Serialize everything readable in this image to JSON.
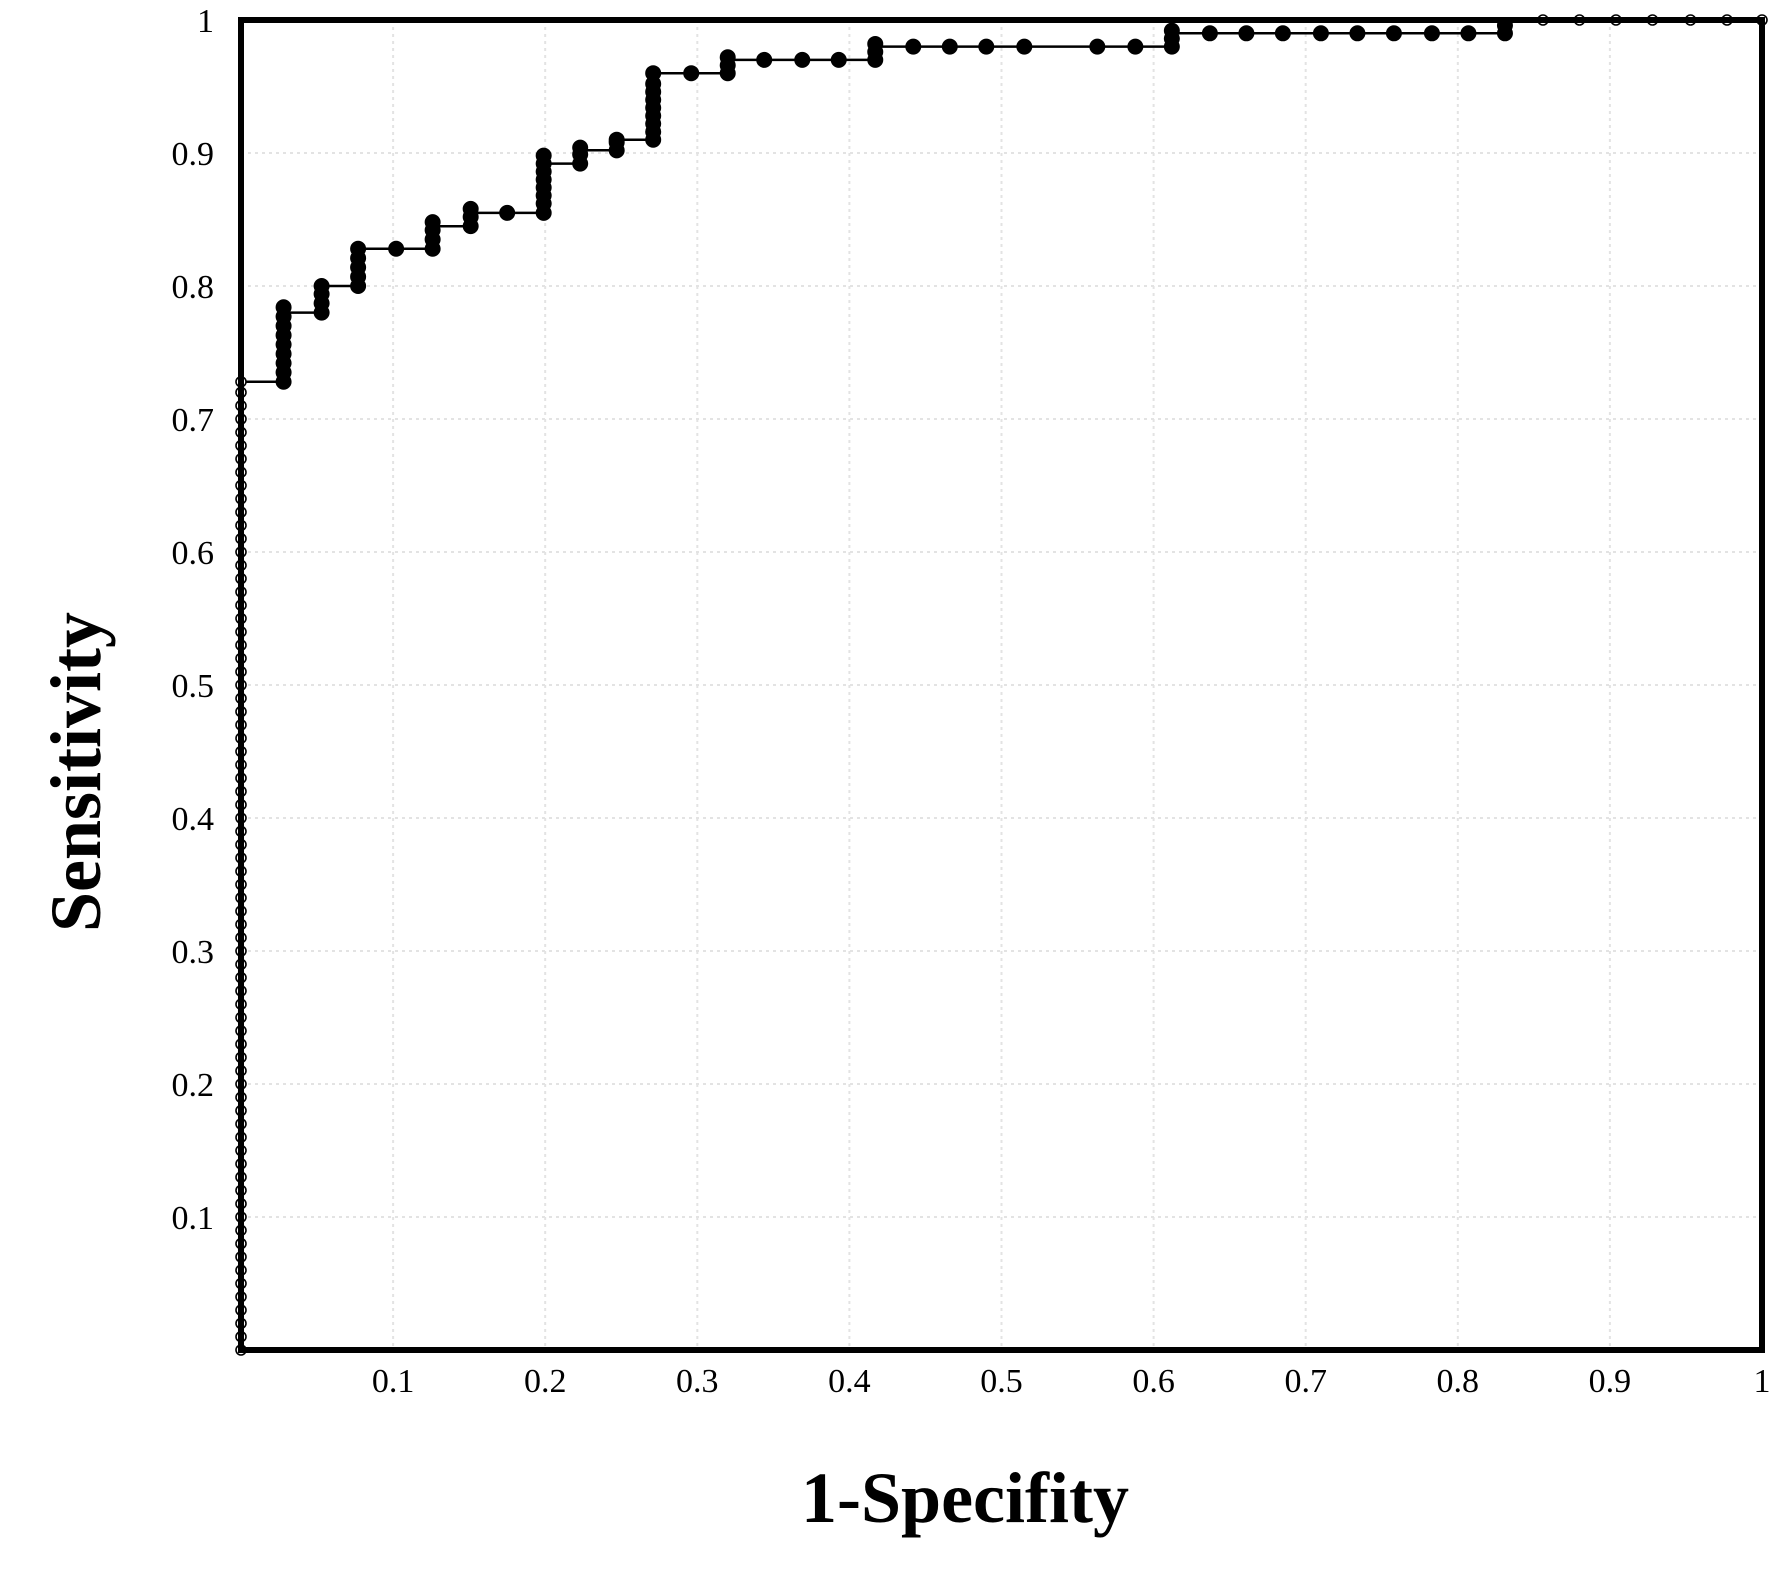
{
  "chart_data": {
    "type": "line",
    "title": "",
    "xlabel": "1-Specifity",
    "ylabel": "Sensitivity",
    "xlim": [
      0,
      1
    ],
    "ylim": [
      0,
      1
    ],
    "grid": true,
    "x_ticks": [
      {
        "value": 0.1,
        "label": "0.1"
      },
      {
        "value": 0.2,
        "label": "0.2"
      },
      {
        "value": 0.3,
        "label": "0.3"
      },
      {
        "value": 0.4,
        "label": "0.4"
      },
      {
        "value": 0.5,
        "label": "0.5"
      },
      {
        "value": 0.6,
        "label": "0.6"
      },
      {
        "value": 0.7,
        "label": "0.7"
      },
      {
        "value": 0.8,
        "label": "0.8"
      },
      {
        "value": 0.9,
        "label": "0.9"
      },
      {
        "value": 1.0,
        "label": "1"
      }
    ],
    "y_ticks": [
      {
        "value": 0.1,
        "label": "0.1"
      },
      {
        "value": 0.2,
        "label": "0.2"
      },
      {
        "value": 0.3,
        "label": "0.3"
      },
      {
        "value": 0.4,
        "label": "0.4"
      },
      {
        "value": 0.5,
        "label": "0.5"
      },
      {
        "value": 0.6,
        "label": "0.6"
      },
      {
        "value": 0.7,
        "label": "0.7"
      },
      {
        "value": 0.8,
        "label": "0.8"
      },
      {
        "value": 0.9,
        "label": "0.9"
      },
      {
        "value": 1.0,
        "label": "1"
      }
    ],
    "series": [
      {
        "style": "open-markers",
        "x": [
          0,
          0,
          0,
          0,
          0,
          0,
          0,
          0,
          0,
          0,
          0,
          0,
          0,
          0,
          0,
          0,
          0,
          0,
          0,
          0,
          0,
          0,
          0,
          0,
          0,
          0,
          0,
          0,
          0,
          0,
          0,
          0,
          0,
          0,
          0,
          0,
          0,
          0,
          0,
          0,
          0,
          0,
          0,
          0,
          0,
          0,
          0,
          0,
          0,
          0,
          0,
          0,
          0,
          0,
          0,
          0,
          0,
          0,
          0,
          0,
          0,
          0,
          0,
          0,
          0,
          0,
          0,
          0,
          0,
          0,
          0,
          0,
          0,
          0
        ],
        "y": [
          0.0,
          0.01,
          0.02,
          0.03,
          0.04,
          0.05,
          0.06,
          0.07,
          0.08,
          0.09,
          0.1,
          0.11,
          0.12,
          0.13,
          0.14,
          0.15,
          0.16,
          0.17,
          0.18,
          0.19,
          0.2,
          0.21,
          0.22,
          0.23,
          0.24,
          0.25,
          0.26,
          0.27,
          0.28,
          0.29,
          0.3,
          0.31,
          0.32,
          0.33,
          0.34,
          0.35,
          0.36,
          0.37,
          0.38,
          0.39,
          0.4,
          0.41,
          0.42,
          0.43,
          0.44,
          0.45,
          0.46,
          0.47,
          0.48,
          0.49,
          0.5,
          0.51,
          0.52,
          0.53,
          0.54,
          0.55,
          0.56,
          0.57,
          0.58,
          0.59,
          0.6,
          0.61,
          0.62,
          0.63,
          0.64,
          0.65,
          0.66,
          0.67,
          0.68,
          0.69,
          0.7,
          0.71,
          0.72,
          0.728
        ]
      },
      {
        "style": "filled-markers",
        "x": [
          0.028,
          0.028,
          0.028,
          0.028,
          0.028,
          0.028,
          0.028,
          0.028,
          0.028,
          0.053,
          0.053,
          0.053,
          0.053,
          0.077,
          0.077,
          0.077,
          0.077,
          0.077,
          0.102,
          0.126,
          0.126,
          0.126,
          0.126,
          0.151,
          0.151,
          0.151,
          0.175,
          0.199,
          0.199,
          0.199,
          0.199,
          0.199,
          0.199,
          0.199,
          0.199,
          0.223,
          0.223,
          0.223,
          0.247,
          0.247,
          0.247,
          0.271,
          0.271,
          0.271,
          0.271,
          0.271,
          0.271,
          0.271,
          0.271,
          0.271,
          0.296,
          0.32,
          0.32,
          0.32,
          0.344,
          0.369,
          0.393,
          0.417,
          0.417,
          0.417,
          0.442,
          0.466,
          0.49,
          0.515,
          0.563,
          0.588,
          0.612,
          0.612,
          0.612,
          0.637,
          0.661,
          0.685,
          0.71,
          0.734,
          0.758,
          0.783,
          0.807,
          0.831,
          0.831
        ],
        "y": [
          0.728,
          0.735,
          0.742,
          0.749,
          0.756,
          0.763,
          0.77,
          0.777,
          0.784,
          0.78,
          0.787,
          0.794,
          0.8,
          0.8,
          0.807,
          0.814,
          0.821,
          0.828,
          0.828,
          0.828,
          0.835,
          0.842,
          0.848,
          0.845,
          0.852,
          0.858,
          0.855,
          0.855,
          0.862,
          0.868,
          0.874,
          0.88,
          0.886,
          0.892,
          0.898,
          0.892,
          0.899,
          0.904,
          0.902,
          0.908,
          0.91,
          0.91,
          0.916,
          0.922,
          0.928,
          0.934,
          0.94,
          0.946,
          0.952,
          0.96,
          0.96,
          0.96,
          0.966,
          0.972,
          0.97,
          0.97,
          0.97,
          0.97,
          0.976,
          0.982,
          0.98,
          0.98,
          0.98,
          0.98,
          0.98,
          0.98,
          0.98,
          0.986,
          0.992,
          0.99,
          0.99,
          0.99,
          0.99,
          0.99,
          0.99,
          0.99,
          0.99,
          0.99,
          0.996
        ]
      },
      {
        "style": "open-markers",
        "x": [
          0.856,
          0.88,
          0.904,
          0.928,
          0.953,
          0.977,
          1.0
        ],
        "y": [
          1,
          1,
          1,
          1,
          1,
          1,
          1
        ]
      }
    ],
    "curve": {
      "x": [
        0,
        0,
        0.028,
        0.028,
        0.053,
        0.053,
        0.077,
        0.077,
        0.126,
        0.126,
        0.151,
        0.151,
        0.199,
        0.199,
        0.223,
        0.223,
        0.247,
        0.247,
        0.271,
        0.271,
        0.32,
        0.32,
        0.417,
        0.417,
        0.612,
        0.612,
        0.831,
        0.831,
        1.0
      ],
      "y": [
        0,
        0.728,
        0.728,
        0.78,
        0.78,
        0.8,
        0.8,
        0.828,
        0.828,
        0.845,
        0.845,
        0.855,
        0.855,
        0.892,
        0.892,
        0.902,
        0.902,
        0.91,
        0.91,
        0.96,
        0.96,
        0.97,
        0.97,
        0.98,
        0.98,
        0.99,
        0.99,
        1.0,
        1.0
      ]
    }
  }
}
